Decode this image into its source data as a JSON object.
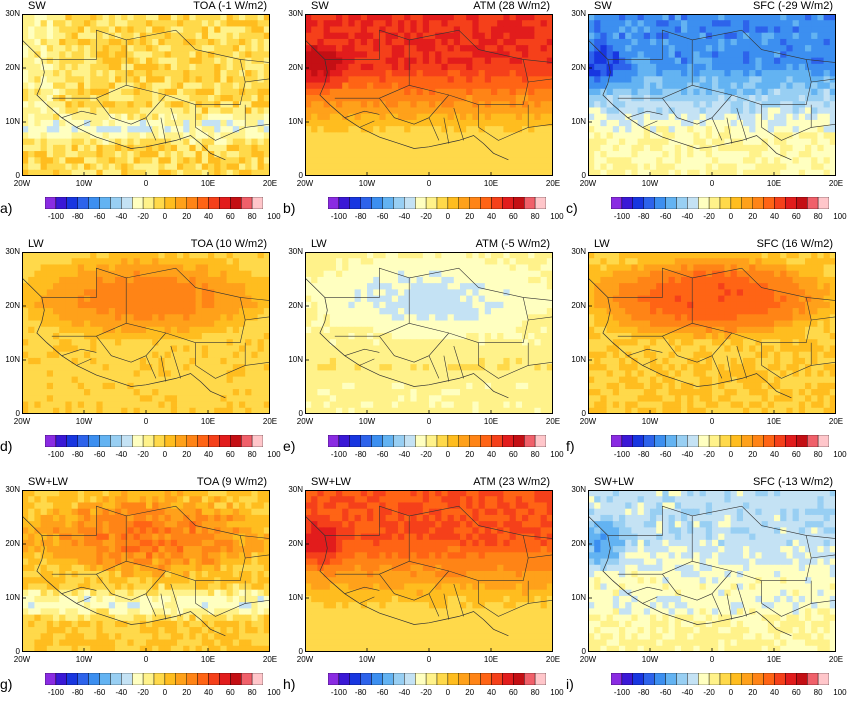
{
  "panels": [
    {
      "letter": "a)",
      "left_title": "SW",
      "right_title": "TOA (-1 W/m2)",
      "mean": -1,
      "field": "toa_sw"
    },
    {
      "letter": "b)",
      "left_title": "SW",
      "right_title": "ATM (28 W/m2)",
      "mean": 28,
      "field": "atm_sw"
    },
    {
      "letter": "c)",
      "left_title": "SW",
      "right_title": "SFC (-29 W/m2)",
      "mean": -29,
      "field": "sfc_sw"
    },
    {
      "letter": "d)",
      "left_title": "LW",
      "right_title": "TOA (10 W/m2)",
      "mean": 10,
      "field": "toa_lw"
    },
    {
      "letter": "e)",
      "left_title": "LW",
      "right_title": "ATM (-5 W/m2)",
      "mean": -5,
      "field": "atm_lw"
    },
    {
      "letter": "f)",
      "left_title": "LW",
      "right_title": "SFC (16 W/m2)",
      "mean": 16,
      "field": "sfc_lw"
    },
    {
      "letter": "g)",
      "left_title": "SW+LW",
      "right_title": "TOA (9 W/m2)",
      "mean": 9,
      "field": "toa_net"
    },
    {
      "letter": "h)",
      "left_title": "SW+LW",
      "right_title": "ATM (23 W/m2)",
      "mean": 23,
      "field": "atm_net"
    },
    {
      "letter": "i)",
      "left_title": "SW+LW",
      "right_title": "SFC (-13 W/m2)",
      "mean": -13,
      "field": "sfc_net"
    }
  ],
  "axes": {
    "lat_labels": [
      "30N",
      "20N",
      "10N",
      "0"
    ],
    "lon_labels": [
      "20W",
      "10W",
      "0",
      "10E",
      "20E"
    ],
    "lat_range": [
      0,
      30
    ],
    "lon_range": [
      -20,
      20
    ]
  },
  "colorbar": {
    "tick_labels": [
      "-100",
      "-80",
      "-60",
      "-40",
      "-20",
      "0",
      "20",
      "40",
      "60",
      "80",
      "100"
    ],
    "colors": [
      "#8a2be2",
      "#3a18d6",
      "#1836e0",
      "#2d63eb",
      "#3c8ff0",
      "#63b3f2",
      "#98cff3",
      "#c4e2f4",
      "#ffffc0",
      "#fff28a",
      "#ffd94a",
      "#ffbd1f",
      "#ffa11a",
      "#ff8416",
      "#ff6415",
      "#f5401a",
      "#e21c1c",
      "#c40f14",
      "#f0606a",
      "#ffc6ca"
    ]
  }
}
